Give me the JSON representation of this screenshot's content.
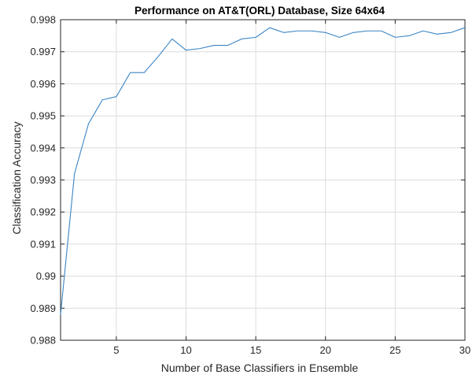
{
  "chart_data": {
    "type": "line",
    "title": "Performance on AT&T(ORL) Database, Size 64x64",
    "xlabel": "Number of Base Classifiers in Ensemble",
    "ylabel": "Classification Accuracy",
    "xlim": [
      1,
      30
    ],
    "ylim": [
      0.988,
      0.998
    ],
    "xticks": [
      5,
      10,
      15,
      20,
      25,
      30
    ],
    "yticks": [
      0.988,
      0.989,
      0.99,
      0.991,
      0.992,
      0.993,
      0.994,
      0.995,
      0.996,
      0.997,
      0.998
    ],
    "ytick_labels": [
      "0.988",
      "0.989",
      "0.99",
      "0.991",
      "0.992",
      "0.993",
      "0.994",
      "0.995",
      "0.996",
      "0.997",
      "0.998"
    ],
    "grid": true,
    "line_color": "#3a84c4",
    "series": [
      {
        "x": [
          1,
          2,
          3,
          4,
          5,
          6,
          7,
          8,
          9,
          10,
          11,
          12,
          13,
          14,
          15,
          16,
          17,
          18,
          19,
          20,
          21,
          22,
          23,
          24,
          25,
          26,
          27,
          28,
          29,
          30
        ],
        "values": [
          0.9888,
          0.9932,
          0.99475,
          0.9955,
          0.9956,
          0.99635,
          0.99635,
          0.99685,
          0.9974,
          0.99705,
          0.9971,
          0.9972,
          0.9972,
          0.9974,
          0.99745,
          0.99775,
          0.9976,
          0.99765,
          0.99765,
          0.9976,
          0.99745,
          0.9976,
          0.99765,
          0.99765,
          0.99745,
          0.9975,
          0.99765,
          0.99755,
          0.9976,
          0.99775
        ]
      }
    ]
  }
}
